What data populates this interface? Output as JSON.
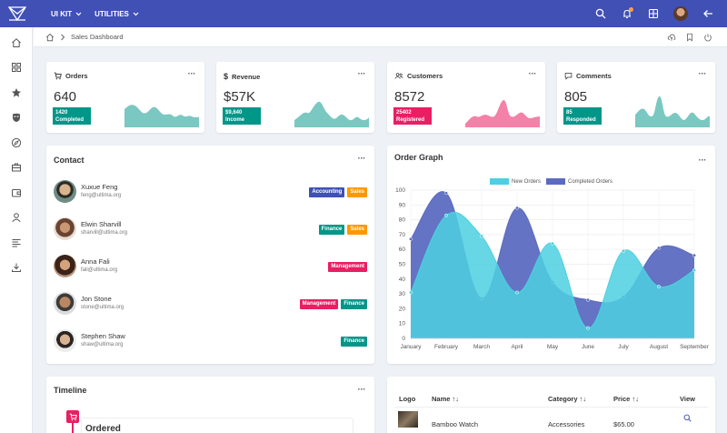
{
  "topbar": {
    "menu": [
      {
        "label": "UI KIT"
      },
      {
        "label": "UTILITIES"
      }
    ]
  },
  "breadcrumb": {
    "page": "Sales Dashboard"
  },
  "stats": [
    {
      "title": "Orders",
      "value": "640",
      "badge_num": "1420",
      "badge_label": "Completed",
      "color": "#009688",
      "spark": "#4db6ac"
    },
    {
      "title": "Revenue",
      "value": "$57K",
      "badge_num": "$9,640",
      "badge_label": "Income",
      "color": "#009688",
      "spark": "#4db6ac"
    },
    {
      "title": "Customers",
      "value": "8572",
      "badge_num": "25402",
      "badge_label": "Registered",
      "color": "#e91e63",
      "spark": "#f06292"
    },
    {
      "title": "Comments",
      "value": "805",
      "badge_num": "85",
      "badge_label": "Responded",
      "color": "#009688",
      "spark": "#4db6ac"
    }
  ],
  "contact": {
    "title": "Contact",
    "people": [
      {
        "name": "Xuxue Feng",
        "email": "feng@ultima.org",
        "tags": [
          {
            "label": "Accounting",
            "color": "#3f51b5"
          },
          {
            "label": "Sales",
            "color": "#ff9800"
          }
        ]
      },
      {
        "name": "Elwin Sharvill",
        "email": "sharvill@ultima.org",
        "tags": [
          {
            "label": "Finance",
            "color": "#009688"
          },
          {
            "label": "Sales",
            "color": "#ff9800"
          }
        ]
      },
      {
        "name": "Anna Fali",
        "email": "fali@ultima.org",
        "tags": [
          {
            "label": "Management",
            "color": "#e91e63"
          }
        ]
      },
      {
        "name": "Jon Stone",
        "email": "stone@ultima.org",
        "tags": [
          {
            "label": "Management",
            "color": "#e91e63"
          },
          {
            "label": "Finance",
            "color": "#009688"
          }
        ]
      },
      {
        "name": "Stephen Shaw",
        "email": "shaw@ultima.org",
        "tags": [
          {
            "label": "Finance",
            "color": "#009688"
          }
        ]
      }
    ]
  },
  "order_graph": {
    "title": "Order Graph"
  },
  "chart_data": {
    "type": "area",
    "categories": [
      "January",
      "February",
      "March",
      "April",
      "May",
      "June",
      "July",
      "August",
      "September"
    ],
    "series": [
      {
        "name": "New Orders",
        "color": "#4dd0e1",
        "values": [
          31,
          83,
          69,
          31,
          64,
          7,
          59,
          35,
          46
        ]
      },
      {
        "name": "Completed Orders",
        "color": "#5c6bc0",
        "values": [
          67,
          98,
          27,
          88,
          38,
          26,
          28,
          61,
          56
        ]
      }
    ],
    "ylim": [
      0,
      100
    ],
    "yticks": [
      "0",
      "10",
      "20",
      "30",
      "40",
      "50",
      "60",
      "70",
      "80",
      "90",
      "100"
    ],
    "legend": "top",
    "grid": true
  },
  "timeline": {
    "title": "Timeline",
    "first_event": "Ordered"
  },
  "products": {
    "headers": {
      "logo": "Logo",
      "name": "Name",
      "category": "Category",
      "price": "Price",
      "view": "View"
    },
    "rows": [
      {
        "name": "Bamboo Watch",
        "category": "Accessories",
        "price": "$65.00"
      }
    ]
  }
}
